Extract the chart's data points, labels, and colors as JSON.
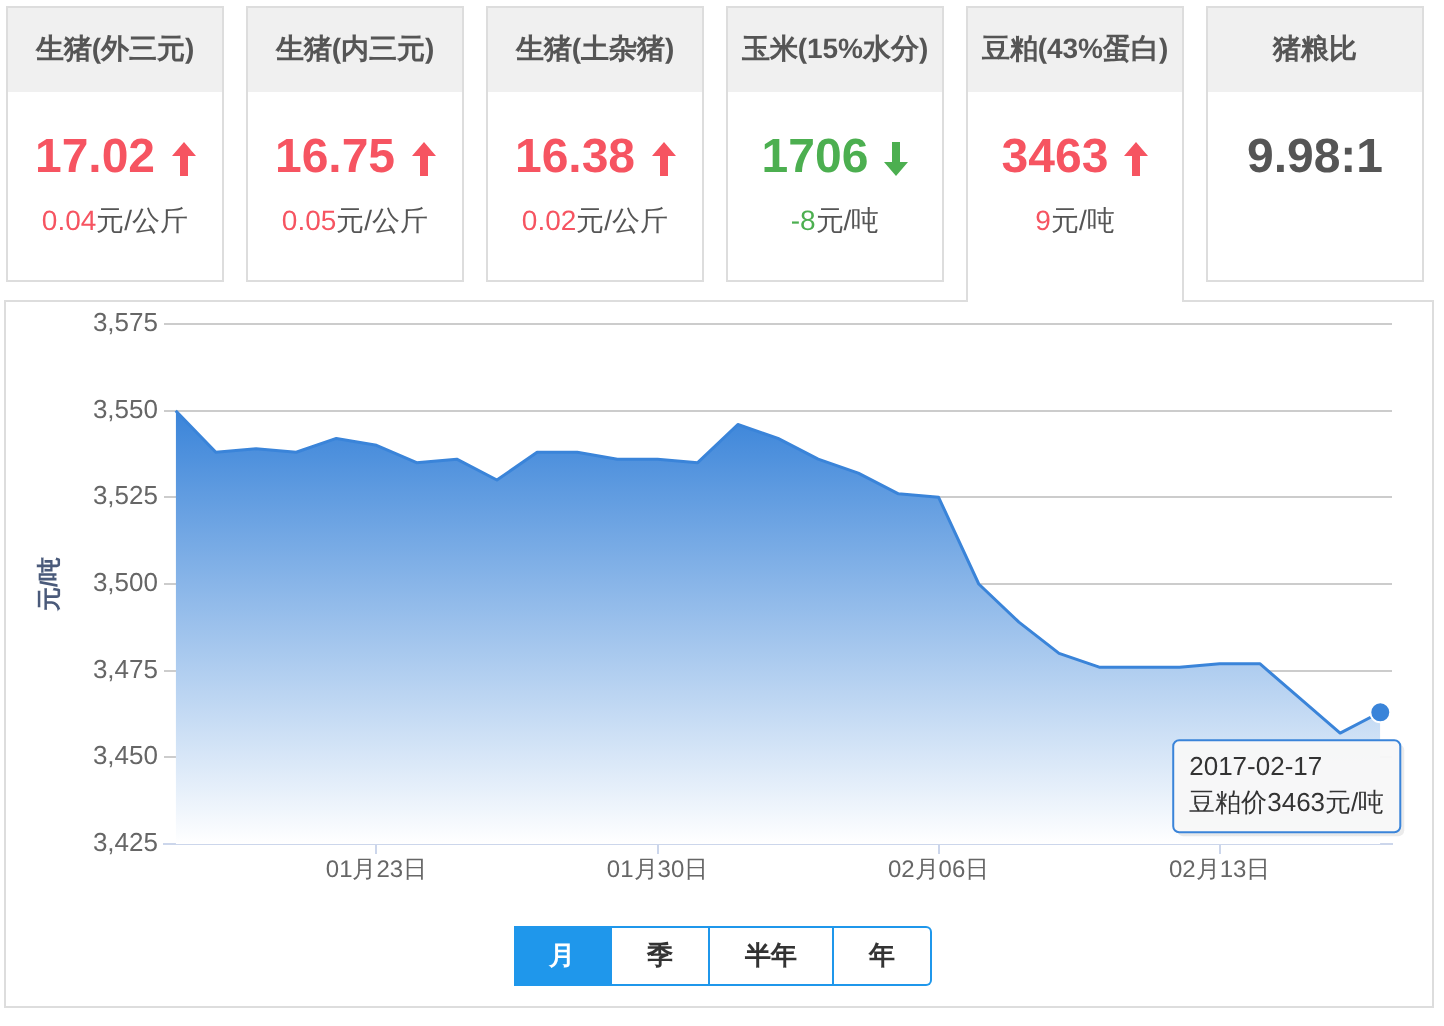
{
  "chart_data": [
    {
      "type": "other",
      "title": "生猪(外三元)",
      "values": [
        17.02,
        0.04
      ],
      "value_labels": [
        "17.02",
        "0.04元/公斤"
      ],
      "color": "#f65461"
    },
    {
      "type": "other",
      "title": "生猪(内三元)",
      "values": [
        16.75,
        0.05
      ],
      "value_labels": [
        "16.75",
        "0.05元/公斤"
      ],
      "color": "#f65461"
    },
    {
      "type": "other",
      "title": "生猪(土杂猪)",
      "values": [
        16.38,
        0.02
      ],
      "value_labels": [
        "16.38",
        "0.02元/公斤"
      ],
      "color": "#f65461"
    },
    {
      "type": "other",
      "title": "玉米(15%水分)",
      "values": [
        1706,
        -8
      ],
      "value_labels": [
        "1706",
        "-8元/吨"
      ],
      "color": "#4caf50"
    },
    {
      "type": "other",
      "title": "豆粕(43%蛋白)",
      "values": [
        3463,
        9
      ],
      "value_labels": [
        "3463",
        "9元/吨"
      ],
      "color": "#f65461"
    },
    {
      "type": "other",
      "title": "猪粮比",
      "annotations": [
        "9.98:1"
      ]
    },
    {
      "type": "area",
      "ylabel": "元/吨",
      "color": "#3a84d9",
      "x": [
        "2017-01-18",
        "2017-01-19",
        "2017-01-20",
        "2017-01-21",
        "2017-01-22",
        "2017-01-23",
        "2017-01-24",
        "2017-01-25",
        "2017-01-26",
        "2017-01-27",
        "2017-01-28",
        "2017-01-29",
        "2017-01-30",
        "2017-01-31",
        "2017-02-01",
        "2017-02-02",
        "2017-02-03",
        "2017-02-04",
        "2017-02-05",
        "2017-02-06",
        "2017-02-07",
        "2017-02-08",
        "2017-02-09",
        "2017-02-10",
        "2017-02-11",
        "2017-02-12",
        "2017-02-13",
        "2017-02-14",
        "2017-02-15",
        "2017-02-16",
        "2017-02-17"
      ],
      "values": [
        3550,
        3538,
        3539,
        3538,
        3542,
        3540,
        3535,
        3536,
        3530,
        3538,
        3538,
        3536,
        3536,
        3535,
        3546,
        3542,
        3536,
        3532,
        3526,
        3525,
        3500,
        3489,
        3480,
        3476,
        3476,
        3476,
        3477,
        3477,
        3467,
        3457,
        3463
      ],
      "xlim": [
        "2017-01-17T17:00",
        "2017-02-17T07:00"
      ],
      "xticks": [
        {
          "value": "2017-01-23",
          "label": "01月23日"
        },
        {
          "value": "2017-01-30",
          "label": "01月30日"
        },
        {
          "value": "2017-02-06",
          "label": "02月06日"
        },
        {
          "value": "2017-02-13",
          "label": "02月13日"
        }
      ],
      "ylim": [
        3425,
        3575
      ],
      "yticks": [
        {
          "value": 3425,
          "label": "3,425"
        },
        {
          "value": 3450,
          "label": "3,450"
        },
        {
          "value": 3475,
          "label": "3,475"
        },
        {
          "value": 3500,
          "label": "3,500"
        },
        {
          "value": 3525,
          "label": "3,525"
        },
        {
          "value": 3550,
          "label": "3,550"
        },
        {
          "value": 3575,
          "label": "3,575"
        }
      ],
      "grid": "y",
      "annotations": [
        {
          "text": "2017-02-17",
          "x": "2017-02-17",
          "y": 3463
        },
        {
          "text": "豆粕价3463元/吨",
          "x": "2017-02-17",
          "y": 3463
        }
      ]
    },
    {
      "type": "other",
      "categories": [
        "月",
        "季",
        "半年",
        "年"
      ]
    }
  ]
}
